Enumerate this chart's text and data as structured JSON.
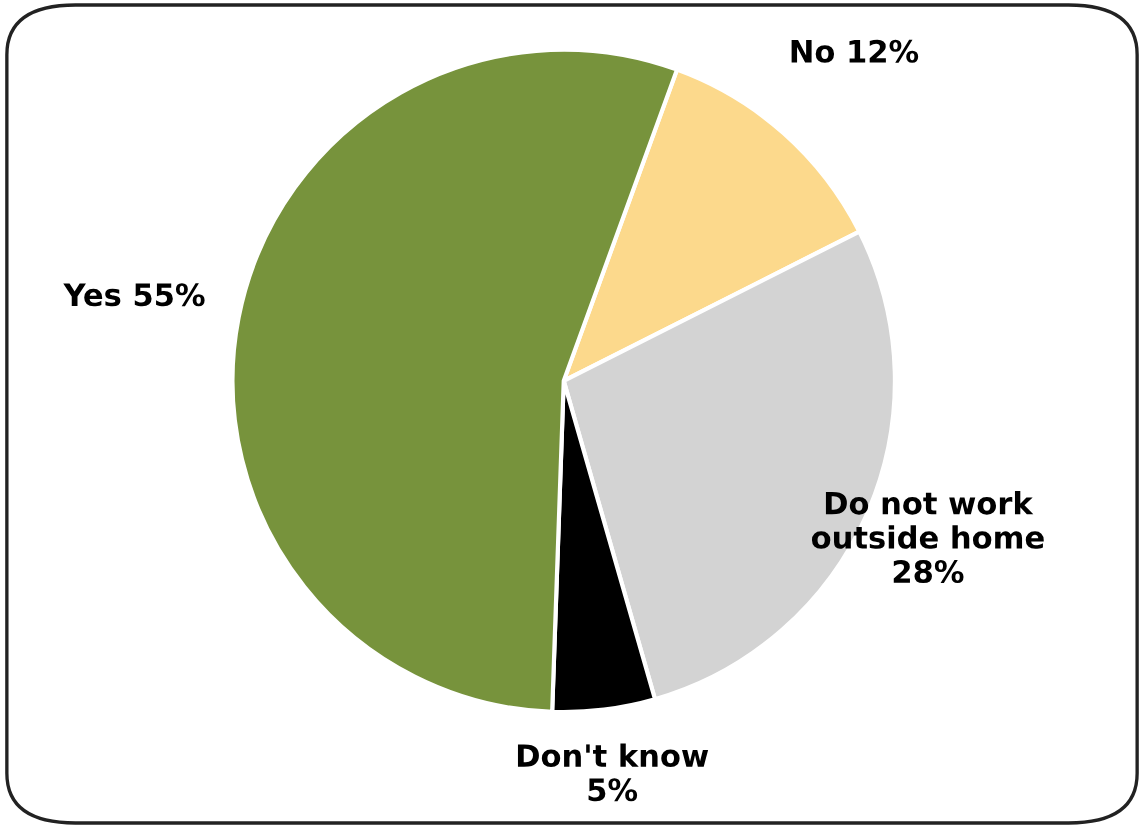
{
  "chart_data": {
    "type": "pie",
    "categories": [
      "No",
      "Do not work outside home",
      "Don't know",
      "Yes"
    ],
    "values": [
      12,
      28,
      5,
      55
    ],
    "value_labels": [
      "12%",
      "28%",
      "5%",
      "55%"
    ],
    "colors": [
      "#fcd98c",
      "#d3d3d3",
      "#000000",
      "#77933c"
    ]
  }
}
